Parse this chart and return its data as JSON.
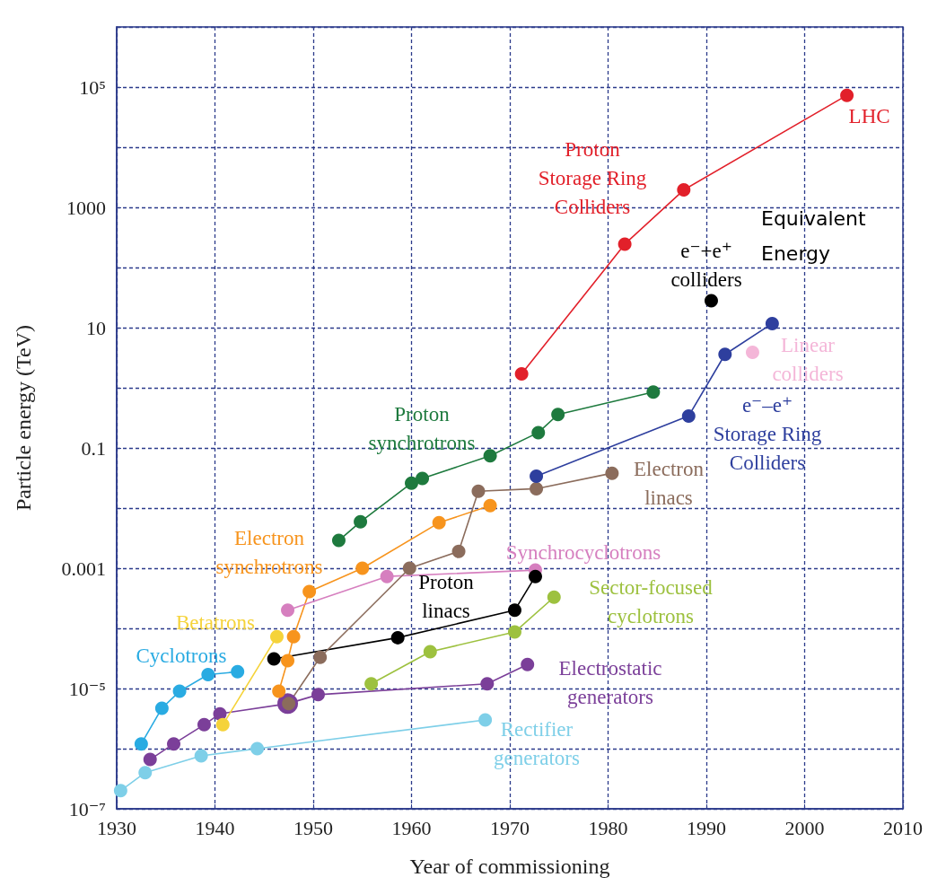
{
  "chart_data": {
    "type": "line",
    "xlabel": "Year of commissioning",
    "ylabel": "Particle energy (TeV)",
    "xlim": [
      1930,
      2010
    ],
    "xticks": [
      1930,
      1940,
      1950,
      1960,
      1970,
      1980,
      1990,
      2000,
      2010
    ],
    "ylim": [
      1e-07,
      1000000
    ],
    "yticks": [
      {
        "value": 1e-07,
        "label": "10⁻⁷"
      },
      {
        "value": 1e-06,
        "label": null
      },
      {
        "value": 1e-05,
        "label": "10⁻⁵"
      },
      {
        "value": 0.0001,
        "label": null
      },
      0.001,
      {
        "value": 0.01,
        "label": null
      },
      0.1,
      {
        "value": 1,
        "label": null
      },
      10,
      {
        "value": 100,
        "label": null
      },
      1000,
      {
        "value": 10000,
        "label": null
      },
      {
        "value": 100000,
        "label": "10⁵"
      },
      {
        "value": 1000000,
        "label": null
      }
    ],
    "log": "y",
    "grid": true,
    "marker": "circle",
    "line_style": "solid",
    "series": [
      {
        "name": "Cyclotrons",
        "color": "#29abe2",
        "x": [
          1932.5,
          1934.6,
          1936.4,
          1939.3,
          1942.3
        ],
        "values": [
          1.2e-06,
          4.7e-06,
          9e-06,
          1.7e-05,
          1.9e-05
        ]
      },
      {
        "name": "Rectifier generators",
        "color": "#7ecfe8",
        "x": [
          1930.4,
          1932.9,
          1938.6,
          1944.3,
          1967.5
        ],
        "values": [
          2e-07,
          4e-07,
          7.6e-07,
          1e-06,
          3e-06
        ]
      },
      {
        "name": "Electrostatic generators",
        "color": "#7b3f99",
        "x": [
          1933.4,
          1935.8,
          1938.9,
          1940.5,
          1947.4,
          1950.5,
          1967.7,
          1971.8
        ],
        "values": [
          6.6e-07,
          1.2e-06,
          2.5e-06,
          3.8e-06,
          5.6e-06,
          7.9e-06,
          1.2e-05,
          2.5e-05
        ]
      },
      {
        "name": "Betatrons",
        "color": "#f5d33a",
        "x": [
          1940.8,
          1946.3
        ],
        "values": [
          2.5e-06,
          7.3e-05
        ]
      },
      {
        "name": "Electron synchrotrons",
        "color": "#f7941d",
        "x": [
          1946.5,
          1947.4,
          1948.0,
          1949.6,
          1955.0,
          1962.8,
          1968.0
        ],
        "values": [
          9e-06,
          2.9e-05,
          7.3e-05,
          0.00041,
          0.001,
          0.0057,
          0.011
        ]
      },
      {
        "name": "Synchrocyclotrons",
        "color": "#d67fbf",
        "x": [
          1947.4,
          1957.5,
          1972.6
        ],
        "values": [
          0.0002,
          0.00073,
          0.00093
        ]
      },
      {
        "name": "Proton linacs",
        "color": "#000000",
        "x": [
          1946.0,
          1958.6,
          1970.5,
          1972.6
        ],
        "values": [
          3.1e-05,
          7e-05,
          0.0002,
          0.00073
        ]
      },
      {
        "name": "Electron linacs",
        "color": "#8b6c5c",
        "x": [
          1947.5,
          1950.7,
          1959.8,
          1964.8,
          1966.8,
          1972.7,
          1980.4
        ],
        "values": [
          5.6e-06,
          3.3e-05,
          0.001,
          0.0019,
          0.019,
          0.021,
          0.038
        ]
      },
      {
        "name": "Proton synchrotrons",
        "color": "#1e7a3e",
        "x": [
          1952.6,
          1954.8,
          1960.0,
          1961.1,
          1968.0,
          1972.9,
          1974.9,
          1984.6
        ],
        "values": [
          0.0029,
          0.0059,
          0.026,
          0.031,
          0.074,
          0.18,
          0.36,
          0.85
        ]
      },
      {
        "name": "Sector-focused cyclotrons",
        "color": "#9dc13f",
        "x": [
          1955.9,
          1961.9,
          1970.5,
          1974.5
        ],
        "values": [
          1.2e-05,
          4.1e-05,
          8.7e-05,
          0.00033
        ]
      },
      {
        "name": "Proton Storage Ring Colliders",
        "color": "#e2202a",
        "x": [
          1971.2,
          1981.7,
          1987.7,
          2004.3
        ],
        "values": [
          1.7,
          245,
          1950,
          73000
        ]
      },
      {
        "name": "e⁻–e⁺ Storage Ring Colliders",
        "color": "#2e3f9e",
        "x": [
          1972.7,
          1988.2,
          1991.9,
          1996.7
        ],
        "values": [
          0.034,
          0.34,
          3.6,
          11.7
        ]
      },
      {
        "name": "e⁻+e⁺ colliders",
        "color": "#000000",
        "x": [
          1990.5
        ],
        "values": [
          28
        ]
      },
      {
        "name": "Linear colliders",
        "color": "#f4b6d8",
        "x": [
          1994.7
        ],
        "values": [
          3.9
        ]
      }
    ],
    "annotations": [
      {
        "text": "LHC",
        "x": 2004.3,
        "y": 73000
      },
      "Equivalent Energy"
    ]
  }
}
